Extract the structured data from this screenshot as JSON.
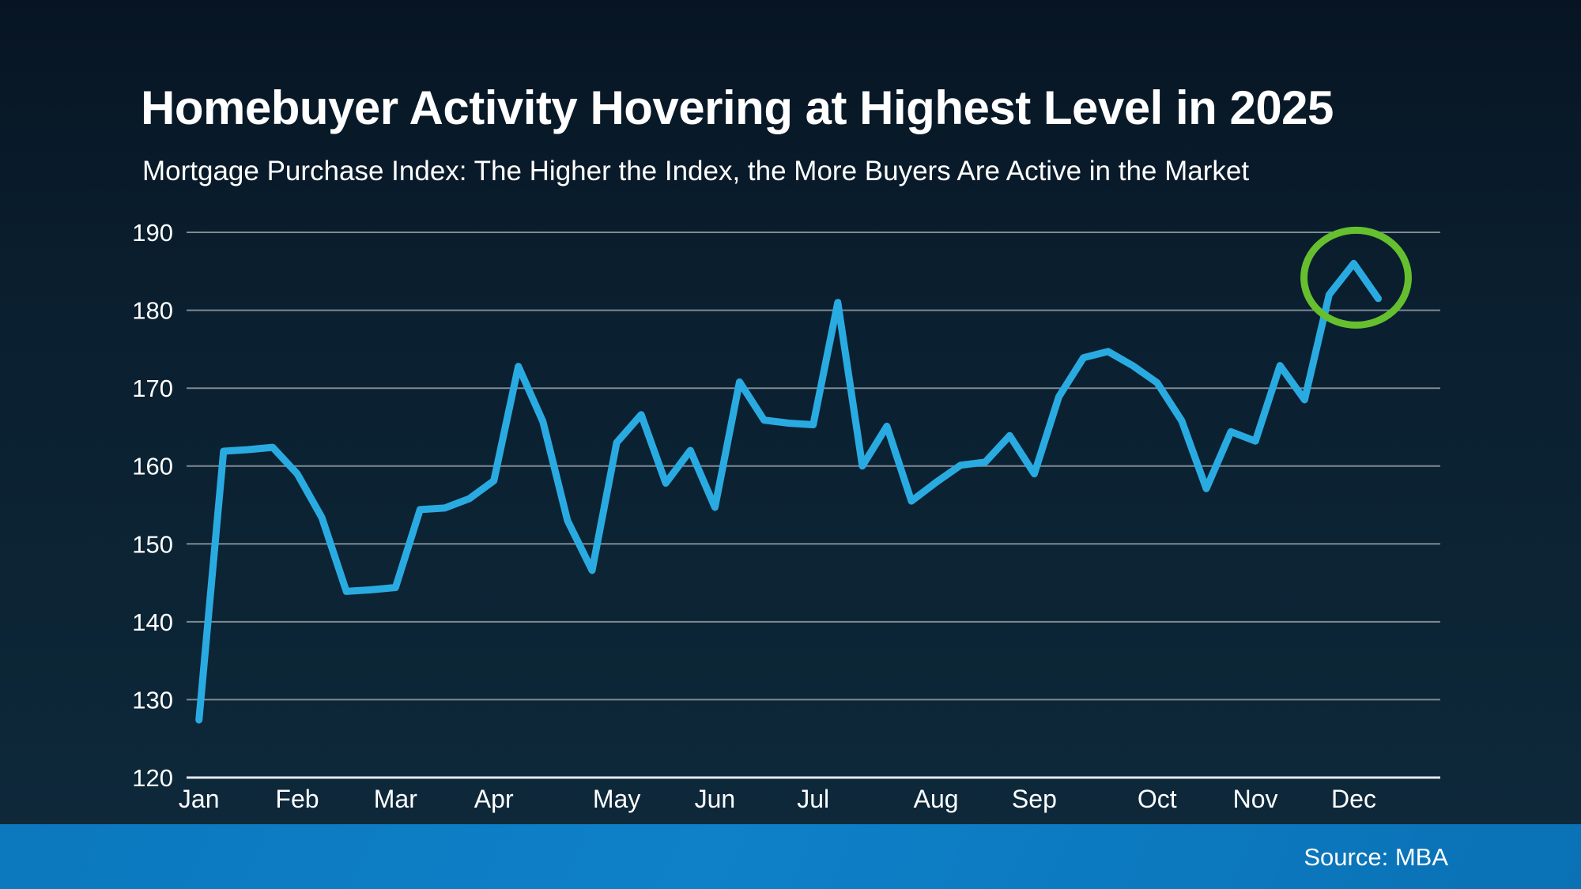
{
  "chart_data": {
    "type": "line",
    "title": "Homebuyer Activity Hovering at Highest Level in 2025",
    "subtitle": "Mortgage Purchase Index: The Higher the Index, the More Buyers Are Active in the Market",
    "source": "Source: MBA",
    "x_axis": {
      "unit": "weekly points, Jan through Dec 2025",
      "tick_labels": [
        "Jan",
        "Feb",
        "Mar",
        "Apr",
        "May",
        "Jun",
        "Jul",
        "Aug",
        "Sep",
        "Oct",
        "Nov",
        "Dec"
      ],
      "tick_week_index": [
        0,
        4,
        8,
        12,
        17,
        21,
        25,
        30,
        34,
        39,
        43,
        47
      ]
    },
    "y_axis": {
      "ticks": [
        190,
        180,
        170,
        160,
        150,
        140,
        130,
        120
      ],
      "range": [
        120,
        190
      ],
      "grid": true
    },
    "series": [
      {
        "name": "Mortgage Purchase Index",
        "values": [
          127.4,
          161.9,
          162.1,
          162.4,
          159.0,
          153.4,
          143.9,
          144.1,
          144.4,
          154.4,
          154.6,
          155.8,
          158.1,
          172.8,
          165.7,
          153.0,
          146.6,
          163.0,
          166.6,
          157.8,
          162.0,
          154.7,
          170.8,
          165.9,
          165.5,
          165.3,
          181.0,
          160.0,
          165.1,
          155.5,
          157.9,
          160.1,
          160.5,
          163.9,
          159.0,
          168.9,
          173.9,
          174.7,
          172.9,
          170.7,
          165.8,
          157.1,
          164.4,
          163.2,
          172.9,
          168.5,
          182.0,
          186.0,
          181.5
        ]
      }
    ],
    "annotation": {
      "shape": "circle",
      "week_index": 47,
      "value": 186.0
    },
    "colors": {
      "line": "#29ABE2",
      "grid": "#7E8A93",
      "axis_line": "#E4EAEF",
      "highlight_circle": "#65BF2E",
      "text": "#FFFFFF",
      "footer_bar": "#0C78BD",
      "background_top": "#071523",
      "background_bottom": "#0E2A3C"
    }
  }
}
